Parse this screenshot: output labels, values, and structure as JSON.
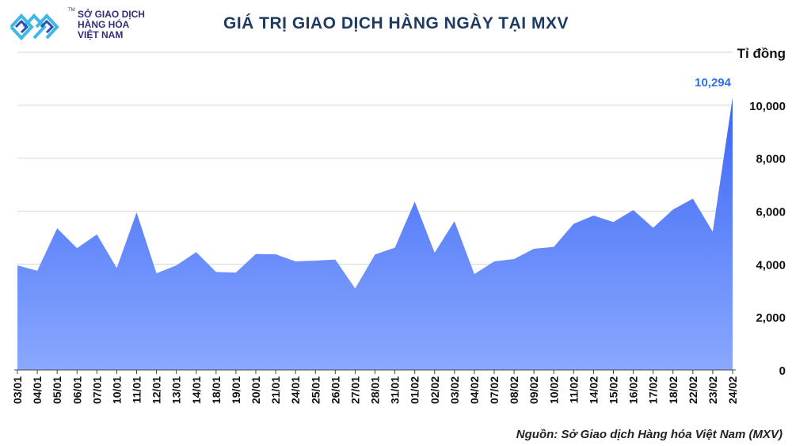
{
  "logo": {
    "icon": "mxv-logo-icon",
    "line1": "SỞ GIAO DỊCH",
    "line2": "HÀNG HÓA",
    "line3": "VIỆT NAM",
    "tm": "TM"
  },
  "title": "GIÁ TRỊ GIAO DỊCH HÀNG NGÀY TẠI MXV",
  "unit_label": "Tỉ đồng",
  "source": "Nguồn: Sở Giao dịch Hàng hóa Việt Nam (MXV)",
  "chart_data": {
    "type": "area",
    "title": "GIÁ TRỊ GIAO DỊCH HÀNG NGÀY TẠI MXV",
    "ylabel": "Tỉ đồng",
    "ylim": [
      0,
      12000
    ],
    "yticks": [
      0,
      2000,
      4000,
      6000,
      8000,
      10000
    ],
    "ytick_labels": [
      "0",
      "2,000",
      "4,000",
      "6,000",
      "8,000",
      "10,000"
    ],
    "grid": true,
    "categories": [
      "03/01",
      "04/01",
      "05/01",
      "06/01",
      "07/01",
      "10/01",
      "11/01",
      "12/01",
      "13/01",
      "14/01",
      "18/01",
      "19/01",
      "20/01",
      "21/01",
      "24/01",
      "25/01",
      "26/01",
      "27/01",
      "28/01",
      "31/01",
      "01/02",
      "02/02",
      "03/02",
      "04/02",
      "07/02",
      "08/02",
      "09/02",
      "10/02",
      "11/02",
      "14/02",
      "15/02",
      "16/02",
      "17/02",
      "18/02",
      "22/02",
      "23/02",
      "24/02"
    ],
    "values": [
      3950,
      3750,
      5350,
      4600,
      5120,
      3850,
      5950,
      3650,
      3950,
      4450,
      3700,
      3680,
      4380,
      4370,
      4100,
      4130,
      4170,
      3080,
      4360,
      4620,
      6360,
      4430,
      5620,
      3620,
      4100,
      4190,
      4580,
      4650,
      5520,
      5830,
      5590,
      6040,
      5370,
      6060,
      6470,
      5220,
      10294
    ],
    "series_color": "#3d6ef5",
    "annotation": {
      "category": "24/02",
      "label": "10,294",
      "color": "#2e6cf0"
    }
  }
}
